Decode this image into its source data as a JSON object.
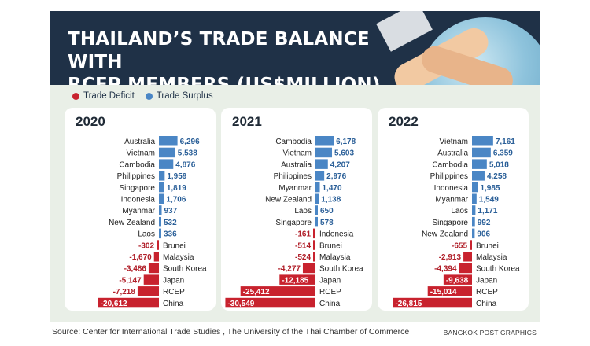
{
  "title": "THAILAND’S TRADE BALANCE WITH\nRCEP MEMBERS (US$MILLION)",
  "legend": {
    "deficit": "Trade Deficit",
    "surplus": "Trade Surplus"
  },
  "colors": {
    "deficit": "#c8222e",
    "surplus": "#4a86c5",
    "header": "#1f3147"
  },
  "source": "Source: Center for International Trade Studies , The University of the Thai Chamber of Commerce",
  "credit": "BANGKOK POST GRAPHICS",
  "chart_data": [
    {
      "type": "bar",
      "title": "2020",
      "categories": [
        "Australia",
        "Vietnam",
        "Cambodia",
        "Philippines",
        "Singapore",
        "Indonesia",
        "Myanmar",
        "New Zealand",
        "Laos",
        "Brunei",
        "Malaysia",
        "South Korea",
        "Japan",
        "RCEP",
        "China"
      ],
      "values": [
        6296,
        5538,
        4876,
        1959,
        1819,
        1706,
        937,
        532,
        336,
        -302,
        -1670,
        -3486,
        -5147,
        -7218,
        -20612
      ],
      "labels": [
        "6,296",
        "5,538",
        "4,876",
        "1,959",
        "1,819",
        "1,706",
        "937",
        "532",
        "336",
        "-302",
        "-1,670",
        "-3,486",
        "-5,147",
        "-7,218",
        "-20,612"
      ]
    },
    {
      "type": "bar",
      "title": "2021",
      "categories": [
        "Cambodia",
        "Vietnam",
        "Australia",
        "Philippines",
        "Myanmar",
        "New Zealand",
        "Laos",
        "Singapore",
        "Indonesia",
        "Brunei",
        "Malaysia",
        "South Korea",
        "Japan",
        "RCEP",
        "China"
      ],
      "values": [
        6178,
        5603,
        4207,
        2976,
        1470,
        1138,
        650,
        578,
        -161,
        -514,
        -524,
        -4277,
        -12185,
        -25412,
        -30549
      ],
      "labels": [
        "6,178",
        "5,603",
        "4,207",
        "2,976",
        "1,470",
        "1,138",
        "650",
        "578",
        "-161",
        "-514",
        "-524",
        "-4,277",
        "-12,185",
        "-25,412",
        "-30,549"
      ]
    },
    {
      "type": "bar",
      "title": "2022",
      "categories": [
        "Vietnam",
        "Australia",
        "Cambodia",
        "Philippines",
        "Indonesia",
        "Myanmar",
        "Laos",
        "Singapore",
        "New Zealand",
        "Brunei",
        "Malaysia",
        "South Korea",
        "Japan",
        "RCEP",
        "China"
      ],
      "values": [
        7161,
        6359,
        5018,
        4258,
        1985,
        1549,
        1171,
        992,
        906,
        -655,
        -2913,
        -4394,
        -9638,
        -15014,
        -26815
      ],
      "labels": [
        "7,161",
        "6,359",
        "5,018",
        "4,258",
        "1,985",
        "1,549",
        "1,171",
        "992",
        "906",
        "-655",
        "-2,913",
        "-4,394",
        "-9,638",
        "-15,014",
        "-26,815"
      ]
    }
  ]
}
